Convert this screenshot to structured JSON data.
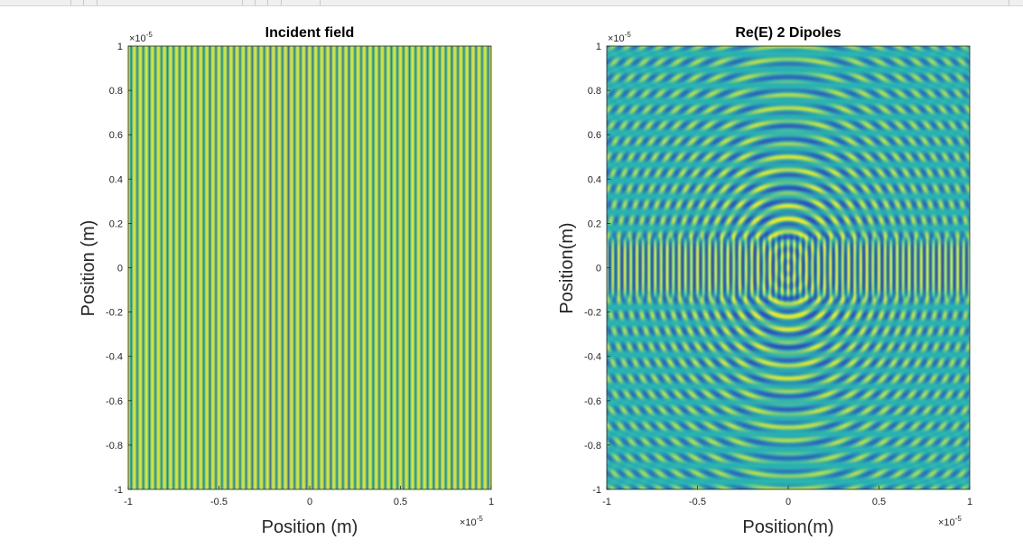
{
  "chart_data": [
    {
      "type": "heatmap",
      "title": "Incident field",
      "xlabel": "Position (m)",
      "ylabel": "Position (m)",
      "x_exponent": "-5",
      "y_exponent": "-5",
      "xlim": [
        -1,
        1
      ],
      "ylim": [
        -1,
        1
      ],
      "x_ticks": [
        "-1",
        "-0.5",
        "0",
        "0.5",
        "1"
      ],
      "x_tick_values": [
        -1,
        -0.5,
        0,
        0.5,
        1
      ],
      "y_ticks": [
        "1",
        "0.8",
        "0.6",
        "0.4",
        "0.2",
        "0",
        "-0.2",
        "-0.4",
        "-0.6",
        "-0.8",
        "-1"
      ],
      "y_tick_values": [
        1,
        0.8,
        0.6,
        0.4,
        0.2,
        0,
        -0.2,
        -0.4,
        -0.6,
        -0.8,
        -1
      ],
      "field": "plane wave, vertical stripes",
      "stripe_periods": 60,
      "colormap": [
        "#3b4cc0",
        "#27b3b3",
        "#f2e31a"
      ]
    },
    {
      "type": "heatmap",
      "title": "Re(E) 2 Dipoles",
      "xlabel": "Position(m)",
      "ylabel": "Position(m)",
      "x_exponent": "-5",
      "y_exponent": "-5",
      "xlim": [
        -1,
        1
      ],
      "ylim": [
        -1,
        1
      ],
      "x_ticks": [
        "-1",
        "-0.5",
        "0",
        "0.5",
        "1"
      ],
      "x_tick_values": [
        -1,
        -0.5,
        0,
        0.5,
        1
      ],
      "y_ticks": [
        "1",
        "0.8",
        "0.6",
        "0.4",
        "0.2",
        "0",
        "-0.2",
        "-0.4",
        "-0.6",
        "-0.8",
        "-1"
      ],
      "y_tick_values": [
        1,
        0.8,
        0.6,
        0.4,
        0.2,
        0,
        -0.2,
        -0.4,
        -0.6,
        -0.8,
        -1
      ],
      "field": "circular waves centered at origin over horizontal plane-wave band",
      "center": [
        0,
        0
      ],
      "band_y": [
        -0.15,
        0.15
      ],
      "colormap": [
        "#3b4cc0",
        "#27b3b3",
        "#f2e31a"
      ]
    }
  ]
}
